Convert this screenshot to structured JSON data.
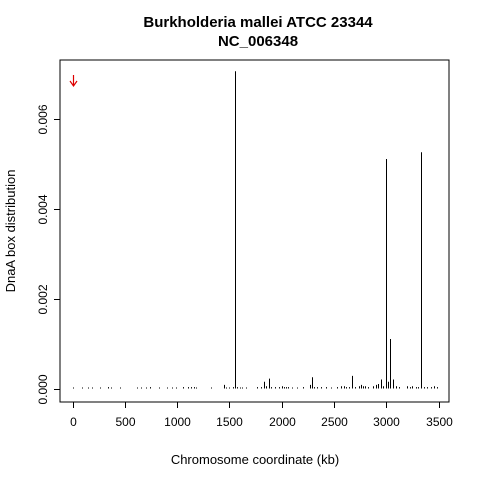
{
  "chart_data": {
    "type": "bar",
    "title": "Burkholderia mallei ATCC 23344",
    "subtitle": "NC_006348",
    "xlabel": "Chromosome coordinate (kb)",
    "ylabel": "DnaA box distribution",
    "xlim": [
      -120,
      3600
    ],
    "ylim": [
      -0.0003,
      0.0073
    ],
    "x_ticks": [
      0,
      500,
      1000,
      1500,
      2000,
      2500,
      3000,
      3500
    ],
    "y_ticks": [
      0,
      0.002,
      0.004,
      0.006
    ],
    "x_tick_labels": [
      "0",
      "500",
      "1000",
      "1500",
      "2000",
      "2500",
      "3000",
      "3500"
    ],
    "y_tick_labels": [
      "0.000",
      "0.002",
      "0.004",
      "0.006"
    ],
    "grid": false,
    "origin_marker": {
      "x": 0,
      "color": "#dd0000",
      "symbol": "down-arrow"
    },
    "series": [
      {
        "x": [
          0,
          95,
          145,
          190,
          260,
          340,
          370,
          455,
          620,
          650,
          700,
          740,
          830,
          900,
          950,
          990,
          1060,
          1105,
          1135,
          1160,
          1180,
          1320,
          1445,
          1470,
          1500,
          1530,
          1550,
          1575,
          1600,
          1625,
          1660,
          1760,
          1800,
          1830,
          1850,
          1875,
          1900,
          1935,
          1975,
          2000,
          2020,
          2045,
          2065,
          2100,
          2150,
          2200,
          2270,
          2290,
          2310,
          2340,
          2375,
          2420,
          2470,
          2530,
          2570,
          2600,
          2615,
          2640,
          2670,
          2700,
          2740,
          2760,
          2780,
          2800,
          2830,
          2870,
          2900,
          2920,
          2950,
          2970,
          3000,
          3015,
          3040,
          3060,
          3095,
          3120,
          3200,
          3225,
          3250,
          3280,
          3300,
          3330,
          3360,
          3390,
          3430,
          3460,
          3485
        ],
        "values": [
          2e-05,
          2e-05,
          2e-05,
          2e-05,
          2e-05,
          3e-05,
          2e-05,
          2e-05,
          2e-05,
          2e-05,
          2e-05,
          3e-05,
          2e-05,
          2e-05,
          2e-05,
          2e-05,
          3e-05,
          3e-05,
          3e-05,
          3e-05,
          2e-05,
          2e-05,
          8e-05,
          2e-05,
          2e-05,
          3e-05,
          0.00705,
          3e-05,
          2e-05,
          2e-05,
          2e-05,
          3e-05,
          3e-05,
          0.00015,
          5e-05,
          0.00022,
          3e-05,
          3e-05,
          3e-05,
          5e-05,
          3e-05,
          3e-05,
          3e-05,
          2e-05,
          2e-05,
          3e-05,
          8e-05,
          0.00025,
          3e-05,
          3e-05,
          3e-05,
          3e-05,
          2e-05,
          3e-05,
          5e-05,
          5e-05,
          3e-05,
          3e-05,
          0.00028,
          3e-05,
          5e-05,
          8e-05,
          5e-05,
          5e-05,
          3e-05,
          5e-05,
          8e-05,
          0.0001,
          0.0002,
          5e-05,
          0.0051,
          0.00015,
          0.0011,
          0.0002,
          5e-05,
          3e-05,
          5e-05,
          3e-05,
          5e-05,
          3e-05,
          3e-05,
          0.00525,
          3e-05,
          3e-05,
          3e-05,
          5e-05,
          3e-05
        ]
      }
    ]
  }
}
